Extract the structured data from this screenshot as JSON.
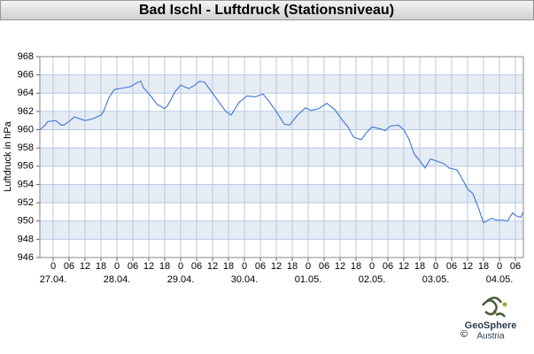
{
  "chart_data": {
    "type": "line",
    "title": "Bad Ischl - Luftdruck (Stationsniveau)",
    "y_label": "Luftdruck in hPa",
    "x": [
      -5,
      -3,
      -2,
      1,
      3,
      4,
      6,
      8,
      12,
      15,
      18,
      19,
      21,
      23,
      27,
      29,
      32,
      33,
      34,
      37,
      39,
      42,
      43,
      46,
      48,
      51,
      53,
      55,
      57,
      59,
      62,
      65,
      67,
      70,
      73,
      76,
      79,
      81,
      84,
      87,
      89,
      92,
      95,
      97,
      100,
      103,
      106,
      109,
      111,
      113,
      116,
      118,
      120,
      123,
      125,
      127,
      130,
      132,
      134,
      136,
      138,
      140,
      142,
      144,
      147,
      149,
      152,
      154,
      156,
      158,
      160,
      162,
      165,
      167,
      169,
      171,
      173,
      174,
      176,
      177
    ],
    "values": [
      960.0,
      960.5,
      960.9,
      961.0,
      960.5,
      960.5,
      960.9,
      961.4,
      961.0,
      961.2,
      961.6,
      962.0,
      963.5,
      964.4,
      964.6,
      964.7,
      965.2,
      965.3,
      964.6,
      963.6,
      962.8,
      962.3,
      962.6,
      964.2,
      964.9,
      964.5,
      964.8,
      965.3,
      965.2,
      964.4,
      963.2,
      962.0,
      961.6,
      963.0,
      963.7,
      963.6,
      963.9,
      963.2,
      962.0,
      960.6,
      960.5,
      961.6,
      962.4,
      962.1,
      962.3,
      962.9,
      962.2,
      961.0,
      960.3,
      959.2,
      958.9,
      959.7,
      960.3,
      960.1,
      959.9,
      960.4,
      960.5,
      960.0,
      958.9,
      957.3,
      956.6,
      955.8,
      956.8,
      956.6,
      956.3,
      955.8,
      955.6,
      954.6,
      953.5,
      953.0,
      951.5,
      949.8,
      950.3,
      950.1,
      950.1,
      950.0,
      950.9,
      950.6,
      950.4,
      951.0
    ],
    "color": "#4a7fd8",
    "xlim": [
      -5,
      177
    ],
    "ylim": [
      946,
      968
    ],
    "yticks": [
      946,
      948,
      950,
      952,
      954,
      956,
      958,
      960,
      962,
      964,
      966,
      968
    ],
    "xticks": [
      0,
      {
        "value": 6,
        "label": "06"
      },
      12,
      18,
      {
        "value": 24,
        "label": "0"
      },
      {
        "value": 30,
        "label": "06"
      },
      {
        "value": 36,
        "label": "12"
      },
      {
        "value": 42,
        "label": "18"
      },
      {
        "value": 48,
        "label": "0"
      },
      {
        "value": 54,
        "label": "06"
      },
      {
        "value": 60,
        "label": "12"
      },
      {
        "value": 66,
        "label": "18"
      },
      {
        "value": 72,
        "label": "0"
      },
      {
        "value": 78,
        "label": "06"
      },
      {
        "value": 84,
        "label": "12"
      },
      {
        "value": 90,
        "label": "18"
      },
      {
        "value": 96,
        "label": "0"
      },
      {
        "value": 102,
        "label": "06"
      },
      {
        "value": 108,
        "label": "12"
      },
      {
        "value": 114,
        "label": "18"
      },
      {
        "value": 120,
        "label": "0"
      },
      {
        "value": 126,
        "label": "06"
      },
      {
        "value": 132,
        "label": "12"
      },
      {
        "value": 138,
        "label": "18"
      },
      {
        "value": 144,
        "label": "0"
      },
      {
        "value": 150,
        "label": "06"
      },
      {
        "value": 156,
        "label": "12"
      },
      {
        "value": 162,
        "label": "18"
      },
      {
        "value": 168,
        "label": "0"
      },
      {
        "value": 174,
        "label": "06"
      }
    ],
    "date_ticks": [
      {
        "value": 0,
        "label": "27.04."
      },
      {
        "value": 24,
        "label": "28.04."
      },
      {
        "value": 48,
        "label": "29.04."
      },
      {
        "value": 72,
        "label": "30.04."
      },
      {
        "value": 96,
        "label": "01.05."
      },
      {
        "value": 120,
        "label": "02.05."
      },
      {
        "value": 144,
        "label": "03.05."
      },
      {
        "value": 168,
        "label": "04.05."
      }
    ],
    "grid": true
  },
  "logo": {
    "name": "GeoSphere",
    "sub": "Austria",
    "copyright": "©"
  }
}
